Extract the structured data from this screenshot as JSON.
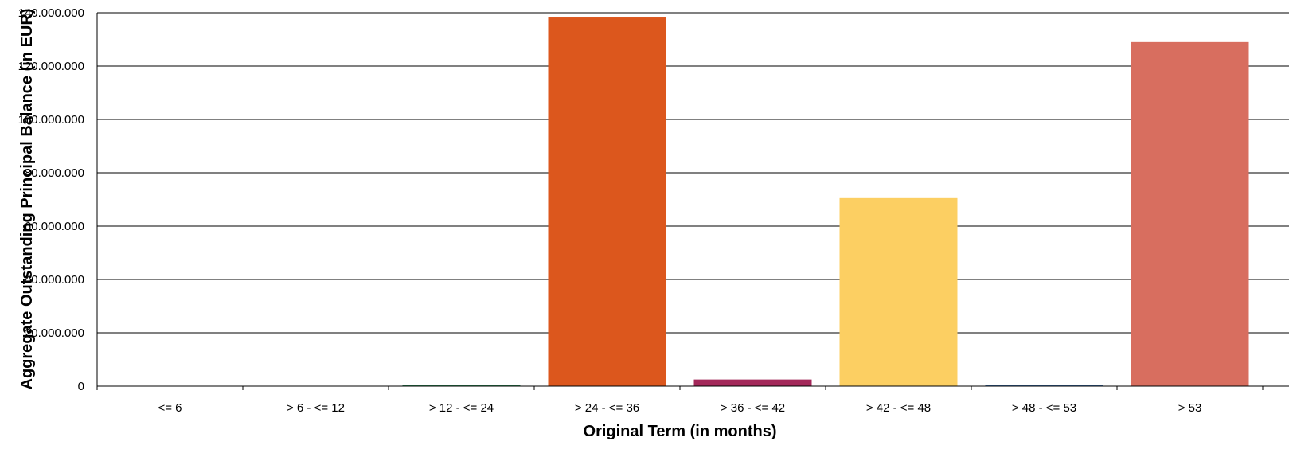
{
  "chart_data": {
    "type": "bar",
    "xlabel": "Original Term (in months)",
    "ylabel": "Aggregate Outstanding Principal Balance (in EUR)",
    "categories": [
      "<= 6",
      "> 6 - <= 12",
      "> 12 - <= 24",
      "> 24 - <= 36",
      "> 36 - <= 42",
      "> 42 - <= 48",
      "> 48 - <= 53",
      "> 53"
    ],
    "values": [
      0,
      0,
      50000,
      138500000,
      2500000,
      70500000,
      50000,
      129000000
    ],
    "colors": [
      "#4a7fb5",
      "#7aa04a",
      "#2e8b57",
      "#dc571d",
      "#a3285a",
      "#fccf62",
      "#3b6ea8",
      "#d86e5f"
    ],
    "ylim": [
      0,
      140000000
    ],
    "yticks": [
      0,
      20000000,
      40000000,
      60000000,
      80000000,
      100000000,
      120000000,
      140000000
    ],
    "ytick_labels": [
      "0",
      "20.000.000",
      "40.000.000",
      "60.000.000",
      "80.000.000",
      "100.000.000",
      "120.000.000",
      "140.000.000"
    ],
    "grid": true,
    "legend": "none"
  }
}
